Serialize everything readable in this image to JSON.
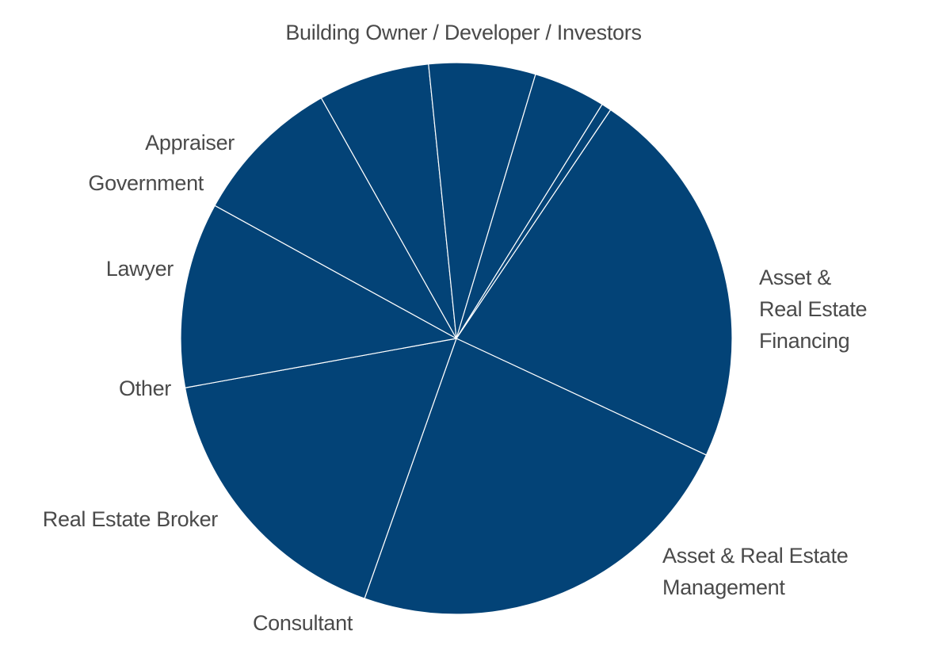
{
  "chart_data": {
    "type": "pie",
    "slices": [
      {
        "label": "Building Owner / Developer / Investors",
        "label_lines": [
          "Building Owner / Developer / Investors"
        ],
        "value": 23.4
      },
      {
        "label": "Asset & Real Estate Financing",
        "label_lines": [
          "Asset &",
          "Real Estate",
          "Financing"
        ],
        "value": 24.4
      },
      {
        "label": "Asset & Real Estate Management",
        "label_lines": [
          "Asset & Real Estate",
          "Management"
        ],
        "value": 17.4
      },
      {
        "label": "Consultant",
        "label_lines": [
          "Consultant"
        ],
        "value": 11.3
      },
      {
        "label": "Real Estate Broker",
        "label_lines": [
          "Real Estate Broker"
        ],
        "value": 9.2
      },
      {
        "label": "Other",
        "label_lines": [
          "Other"
        ],
        "value": 6.8
      },
      {
        "label": "Lawyer",
        "label_lines": [
          "Lawyer"
        ],
        "value": 6.5
      },
      {
        "label": "Government",
        "label_lines": [
          "Government"
        ],
        "value": 4.4
      },
      {
        "label": "Appraiser",
        "label_lines": [
          "Appraiser"
        ],
        "value": 0.6
      }
    ],
    "slice_color": "#034377",
    "separator_color": "#ffffff",
    "label_color": "#4a4a4a"
  }
}
